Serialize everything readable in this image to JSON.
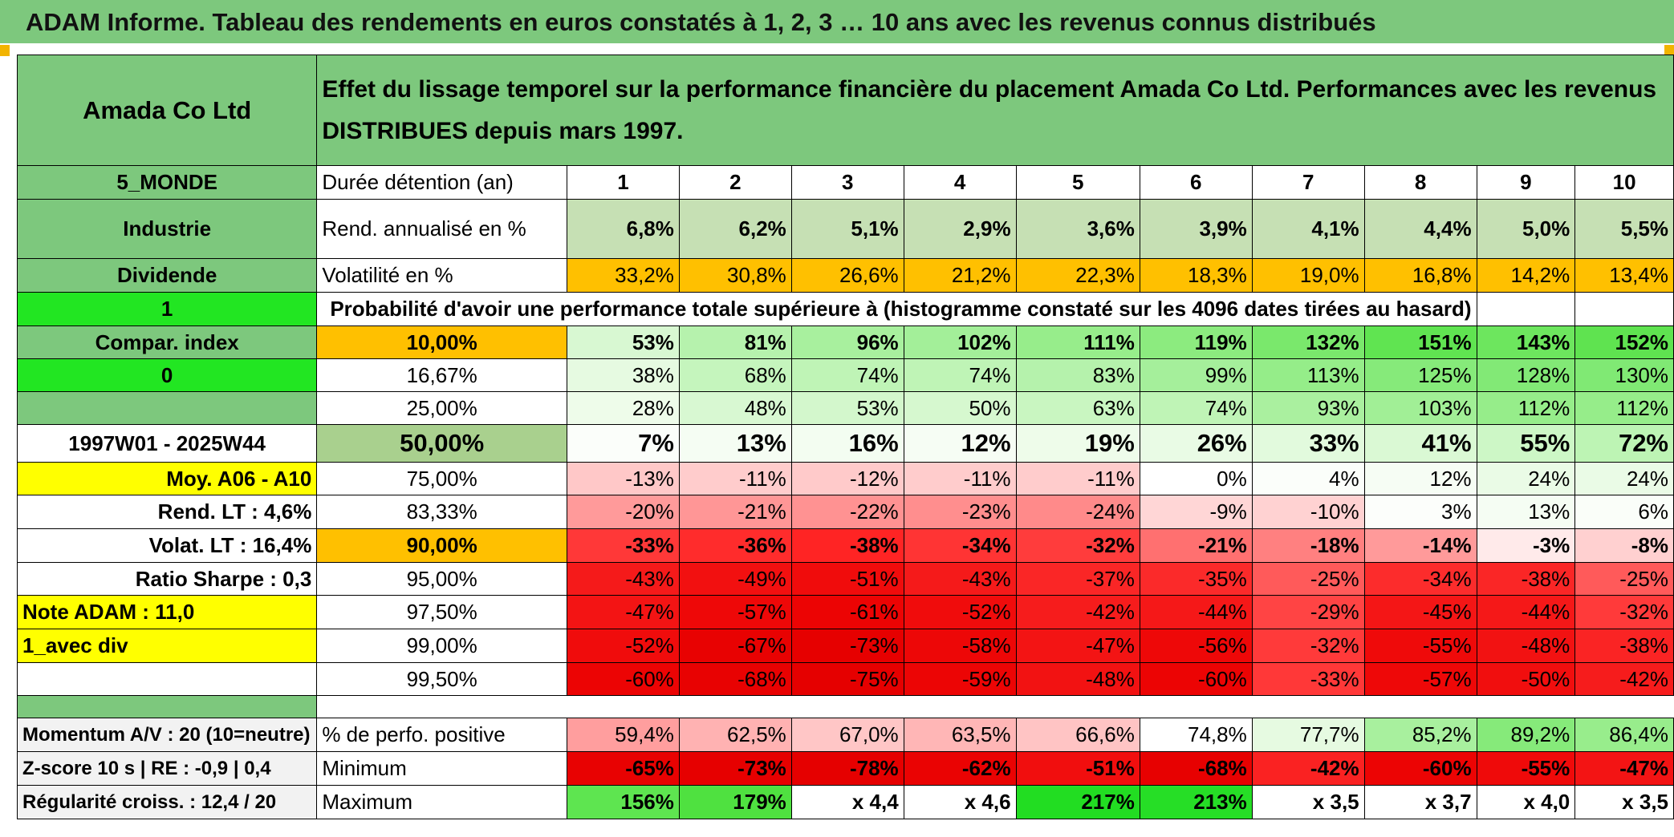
{
  "banner_title": "ADAM Informe. Tableau des rendements en euros constatés à 1, 2, 3 … 10 ans avec les revenus connus distribués",
  "header": {
    "company": "Amada Co Ltd",
    "description": "Effet du lissage temporel sur la performance financière du placement Amada Co Ltd. Performances avec les revenus DISTRIBUES depuis mars 1997."
  },
  "left_panel": {
    "region": "5_MONDE",
    "sector": "Industrie",
    "income": "Dividende",
    "selector_1": "1",
    "compar_index": "Compar. index",
    "selector_2": "0",
    "period": "1997W01 - 2025W44",
    "moy": "Moy. A06 - A10",
    "rend_lt": "Rend. LT :   4,6%",
    "volat_lt": "Volat. LT :   16,4%",
    "sharpe": "Ratio Sharpe :    0,3",
    "note": "Note ADAM : 11,0",
    "div_mode": "1_avec div"
  },
  "row_labels": {
    "duree": "Durée détention (an)",
    "rend": "Rend. annualisé en %",
    "vol": "Volatilité en %",
    "proba": "Probabilité d'avoir une performance totale supérieure à (histogramme constaté sur les 4096 dates tirées au hasard)"
  },
  "years": [
    "1",
    "2",
    "3",
    "4",
    "5",
    "6",
    "7",
    "8",
    "9",
    "10"
  ],
  "rend": [
    "6,8%",
    "6,2%",
    "5,1%",
    "2,9%",
    "3,6%",
    "3,9%",
    "4,1%",
    "4,4%",
    "5,0%",
    "5,5%"
  ],
  "vol": [
    "33,2%",
    "30,8%",
    "26,6%",
    "21,2%",
    "22,3%",
    "18,3%",
    "19,0%",
    "16,8%",
    "14,2%",
    "13,4%"
  ],
  "quantiles": [
    {
      "label": "10,00%",
      "bold": true,
      "values": [
        "53%",
        "81%",
        "96%",
        "102%",
        "111%",
        "119%",
        "132%",
        "151%",
        "143%",
        "152%"
      ],
      "colors": [
        "#d8f8d2",
        "#b6f2ad",
        "#a8f09e",
        "#a3ef99",
        "#97ed8b",
        "#8ceb7f",
        "#7ae86c",
        "#60e451",
        "#6de65e",
        "#5fe350"
      ]
    },
    {
      "label": "16,67%",
      "bold": false,
      "values": [
        "38%",
        "68%",
        "74%",
        "74%",
        "83%",
        "99%",
        "113%",
        "125%",
        "128%",
        "130%"
      ],
      "colors": [
        "#e6fae1",
        "#c5f5bd",
        "#bff4b6",
        "#bff4b6",
        "#b5f2ac",
        "#a5ef9b",
        "#95ed89",
        "#86ea7a",
        "#82e976",
        "#80e974"
      ]
    },
    {
      "label": "25,00%",
      "bold": false,
      "values": [
        "28%",
        "48%",
        "53%",
        "50%",
        "63%",
        "74%",
        "93%",
        "103%",
        "112%",
        "112%"
      ],
      "colors": [
        "#eefcea",
        "#d8f8d2",
        "#d3f7cc",
        "#d6f8cf",
        "#c9f6c1",
        "#bff4b6",
        "#aaf09f",
        "#a1ef96",
        "#96ed8a",
        "#96ed8a"
      ]
    },
    {
      "label": "50,00%",
      "bold": true,
      "values": [
        "7%",
        "13%",
        "16%",
        "12%",
        "19%",
        "26%",
        "33%",
        "41%",
        "55%",
        "72%"
      ],
      "colors": [
        "#fbfefa",
        "#f5fdf3",
        "#f3fdf1",
        "#f6fdf4",
        "#eefcea",
        "#e9fbe5",
        "#e2fadd",
        "#daf9d4",
        "#cdf7c6",
        "#bdf4b4"
      ]
    },
    {
      "label": "75,00%",
      "bold": false,
      "values": [
        "-13%",
        "-11%",
        "-12%",
        "-11%",
        "-11%",
        "0%",
        "4%",
        "12%",
        "24%",
        "24%"
      ],
      "colors": [
        "#ffc8c8",
        "#ffcccc",
        "#ffcaca",
        "#ffcccc",
        "#ffcccc",
        "#ffffff",
        "#fbfefa",
        "#f6fdf4",
        "#eafbe6",
        "#eafbe6"
      ]
    },
    {
      "label": "83,33%",
      "bold": false,
      "values": [
        "-20%",
        "-21%",
        "-22%",
        "-23%",
        "-24%",
        "-9%",
        "-10%",
        "3%",
        "13%",
        "6%"
      ],
      "colors": [
        "#ff9a9a",
        "#ff9696",
        "#ff9292",
        "#ff8e8e",
        "#ff8a8a",
        "#ffd6d6",
        "#ffd2d2",
        "#fcfefb",
        "#f5fdf3",
        "#fafef9"
      ]
    },
    {
      "label": "90,00%",
      "bold": true,
      "values": [
        "-33%",
        "-36%",
        "-38%",
        "-34%",
        "-32%",
        "-21%",
        "-18%",
        "-14%",
        "-3%",
        "-8%"
      ],
      "colors": [
        "#ff3838",
        "#ff2c2c",
        "#ff2424",
        "#ff3434",
        "#ff3c3c",
        "#ff7070",
        "#ff8080",
        "#ff9a9a",
        "#ffeaea",
        "#ffd0d0"
      ]
    },
    {
      "label": "95,00%",
      "bold": false,
      "values": [
        "-43%",
        "-49%",
        "-51%",
        "-43%",
        "-37%",
        "-35%",
        "-25%",
        "-34%",
        "-38%",
        "-25%"
      ],
      "colors": [
        "#f51a1a",
        "#f21010",
        "#f00c0c",
        "#f51a1a",
        "#fa2626",
        "#fb2a2a",
        "#ff5a5a",
        "#fc2c2c",
        "#fa2626",
        "#ff5a5a"
      ]
    },
    {
      "label": "97,50%",
      "bold": false,
      "values": [
        "-47%",
        "-57%",
        "-61%",
        "-52%",
        "-42%",
        "-44%",
        "-29%",
        "-45%",
        "-44%",
        "-32%"
      ],
      "colors": [
        "#f31414",
        "#ee0808",
        "#ec0404",
        "#f00c0c",
        "#f61c1c",
        "#f51818",
        "#ff4444",
        "#f41616",
        "#f51818",
        "#ff3a3a"
      ]
    },
    {
      "label": "99,00%",
      "bold": false,
      "values": [
        "-52%",
        "-67%",
        "-73%",
        "-58%",
        "-47%",
        "-56%",
        "-32%",
        "-55%",
        "-48%",
        "-38%"
      ],
      "colors": [
        "#f00c0c",
        "#e80202",
        "#e60000",
        "#ed0707",
        "#f31414",
        "#ee0808",
        "#ff3a3a",
        "#ef0a0a",
        "#f21212",
        "#fa2424"
      ]
    },
    {
      "label": "99,50%",
      "bold": false,
      "values": [
        "-60%",
        "-68%",
        "-75%",
        "-59%",
        "-48%",
        "-60%",
        "-33%",
        "-57%",
        "-50%",
        "-42%"
      ],
      "colors": [
        "#ec0404",
        "#e80202",
        "#e50000",
        "#ec0505",
        "#f21212",
        "#ec0404",
        "#ff3838",
        "#ee0808",
        "#f10e0e",
        "#f61c1c"
      ]
    }
  ],
  "bottom_labels": {
    "momentum": "Momentum A/V : 20 (10=neutre)",
    "zscore": "Z-score 10 s | RE : -0,9 | 0,4",
    "regularite": "Régularité croiss. : 12,4 / 20",
    "positive": "% de perfo. positive",
    "minimum": "Minimum",
    "maximum": "Maximum"
  },
  "positive": [
    "59,4%",
    "62,5%",
    "67,0%",
    "63,5%",
    "66,6%",
    "74,8%",
    "77,7%",
    "85,2%",
    "89,2%",
    "86,4%"
  ],
  "positive_colors": [
    "#ff9e9e",
    "#ffb2b2",
    "#ffc6c6",
    "#ffb6b6",
    "#ffc4c4",
    "#ffffff",
    "#e6fae1",
    "#a8f09e",
    "#86ea7a",
    "#98ed8c"
  ],
  "minimum": [
    "-65%",
    "-73%",
    "-78%",
    "-62%",
    "-51%",
    "-68%",
    "-42%",
    "-60%",
    "-55%",
    "-47%"
  ],
  "minimum_colors": [
    "#e80202",
    "#e60000",
    "#e50000",
    "#ea0303",
    "#f10e0e",
    "#e70101",
    "#fa2222",
    "#ec0404",
    "#ef0a0a",
    "#f31414"
  ],
  "maximum": [
    "156%",
    "179%",
    "x 4,4",
    "x 4,6",
    "217%",
    "213%",
    "x 3,5",
    "x 3,7",
    "x 4,0",
    "x 3,5"
  ],
  "maximum_colors": [
    "#5ee550",
    "#4fe140",
    "#ffffff",
    "#ffffff",
    "#22dd22",
    "#26de26",
    "#ffffff",
    "#ffffff",
    "#ffffff",
    "#ffffff"
  ],
  "colors": {
    "label_green": "#7dc87d",
    "bright_green": "#22e622",
    "rend_green": "#c6e0b4",
    "vol_orange": "#ffc000",
    "median_green": "#a9d08e",
    "yellow": "#ffff00",
    "red_text": "#d01010"
  }
}
